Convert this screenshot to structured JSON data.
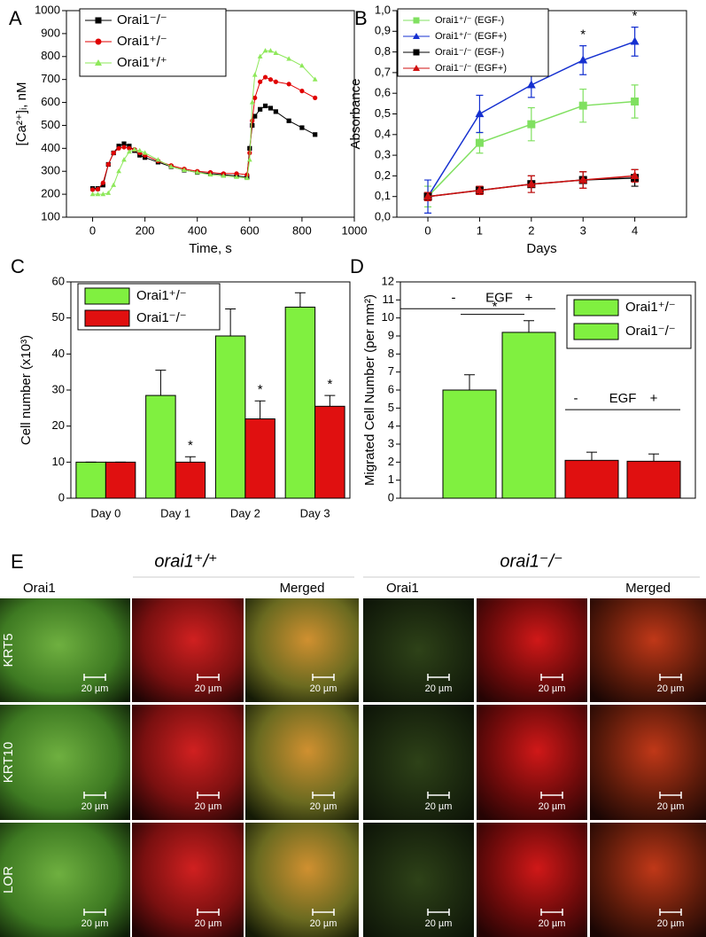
{
  "chart_data": [
    {
      "type": "line",
      "panel": "A",
      "xlabel": "Time, s",
      "ylabel": "[Ca²⁺]ᵢ, nM",
      "x": [
        0,
        20,
        40,
        60,
        80,
        100,
        120,
        140,
        160,
        180,
        200,
        250,
        300,
        350,
        400,
        450,
        500,
        550,
        590,
        600,
        610,
        620,
        640,
        660,
        680,
        700,
        750,
        800,
        850
      ],
      "series": [
        {
          "name": "Orai1⁻/⁻",
          "color": "#000000",
          "marker": "square",
          "values": [
            225,
            225,
            240,
            330,
            380,
            410,
            420,
            410,
            390,
            370,
            360,
            340,
            320,
            305,
            295,
            290,
            285,
            280,
            275,
            400,
            500,
            540,
            570,
            585,
            575,
            560,
            520,
            490,
            460
          ]
        },
        {
          "name": "Orai1⁺/⁻",
          "color": "#e00000",
          "marker": "circle",
          "values": [
            220,
            222,
            250,
            330,
            380,
            400,
            405,
            400,
            395,
            380,
            370,
            345,
            325,
            310,
            300,
            295,
            290,
            290,
            285,
            380,
            520,
            620,
            690,
            710,
            700,
            690,
            680,
            650,
            620
          ]
        },
        {
          "name": "Orai1⁺/⁺",
          "color": "#8ee85a",
          "marker": "triangle",
          "values": [
            200,
            200,
            200,
            205,
            240,
            300,
            350,
            385,
            395,
            390,
            380,
            350,
            320,
            305,
            295,
            285,
            280,
            275,
            270,
            350,
            600,
            720,
            800,
            825,
            825,
            815,
            790,
            760,
            700
          ]
        }
      ],
      "xlim": [
        -100,
        1000
      ],
      "xticks": [
        0,
        200,
        400,
        600,
        800,
        1000
      ],
      "ylim": [
        100,
        1000
      ],
      "yticks": [
        100,
        200,
        300,
        400,
        500,
        600,
        700,
        800,
        900,
        1000
      ]
    },
    {
      "type": "line",
      "panel": "B",
      "xlabel": "Days",
      "ylabel": "Absorbance",
      "x": [
        0,
        1,
        2,
        3,
        4
      ],
      "series": [
        {
          "name": "Orai1⁺/⁻ (EGF-)",
          "color": "#80e060",
          "marker": "square",
          "values": [
            0.1,
            0.36,
            0.45,
            0.54,
            0.56
          ],
          "errors": [
            0.05,
            0.05,
            0.08,
            0.08,
            0.08
          ]
        },
        {
          "name": "Orai1⁺/⁻ (EGF+)",
          "color": "#1530d0",
          "marker": "triangle",
          "values": [
            0.1,
            0.5,
            0.64,
            0.76,
            0.85
          ],
          "errors": [
            0.08,
            0.09,
            0.06,
            0.07,
            0.07
          ]
        },
        {
          "name": "Orai1⁻/⁻ (EGF-)",
          "color": "#000000",
          "marker": "square",
          "values": [
            0.1,
            0.13,
            0.16,
            0.18,
            0.19
          ],
          "errors": [
            0.02,
            0.02,
            0.04,
            0.04,
            0.04
          ]
        },
        {
          "name": "Orai1⁻/⁻ (EGF+)",
          "color": "#d01010",
          "marker": "triangle",
          "values": [
            0.1,
            0.13,
            0.16,
            0.18,
            0.2
          ],
          "errors": [
            0.02,
            0.02,
            0.04,
            0.04,
            0.03
          ]
        }
      ],
      "annotations": [
        {
          "text": "*",
          "x": 3
        },
        {
          "text": "*",
          "x": 4
        }
      ],
      "xlim": [
        -0.6,
        5
      ],
      "xticks": [
        0,
        1,
        2,
        3,
        4
      ],
      "ylim": [
        0,
        1
      ],
      "yticks": [
        {
          "value": 0,
          "label": "0,0"
        },
        {
          "value": 0.1,
          "label": "0,1"
        },
        {
          "value": 0.2,
          "label": "0,2"
        },
        {
          "value": 0.3,
          "label": "0,3"
        },
        {
          "value": 0.4,
          "label": "0,4"
        },
        {
          "value": 0.5,
          "label": "0,5"
        },
        {
          "value": 0.6,
          "label": "0,6"
        },
        {
          "value": 0.7,
          "label": "0,7"
        },
        {
          "value": 0.8,
          "label": "0,8"
        },
        {
          "value": 0.9,
          "label": "0,9"
        },
        {
          "value": 1,
          "label": "1,0"
        }
      ]
    },
    {
      "type": "bar",
      "panel": "C",
      "ylabel": "Cell number (x10³)",
      "categories": [
        "Day 0",
        "Day 1",
        "Day 2",
        "Day 3"
      ],
      "series": [
        {
          "name": "Orai1⁺/⁻",
          "color": "#80f040",
          "values": [
            10,
            28.5,
            45,
            53
          ],
          "errors": [
            0,
            7,
            7.5,
            4
          ]
        },
        {
          "name": "Orai1⁻/⁻",
          "color": "#e01010",
          "values": [
            10,
            10,
            22,
            25.5
          ],
          "errors": [
            0,
            1.5,
            5,
            3
          ]
        }
      ],
      "annotations": [
        {
          "text": "*",
          "x": 1
        },
        {
          "text": "*",
          "x": 2
        },
        {
          "text": "*",
          "x": 3
        }
      ],
      "ylim": [
        0,
        60
      ],
      "yticks": [
        0,
        10,
        20,
        30,
        40,
        50,
        60
      ]
    },
    {
      "type": "bar",
      "panel": "D",
      "ylabel": "Migrated Cell Number (per mm²)",
      "categories": [
        null,
        null,
        null,
        null
      ],
      "values": [
        6,
        9.2,
        2.1,
        2.05
      ],
      "errors": [
        0.85,
        0.65,
        0.45,
        0.4
      ],
      "colors": [
        "#80f040",
        "#80f040",
        "#e01010",
        "#e01010"
      ],
      "legend": [
        {
          "name": "Orai1⁺/⁻",
          "color": "#80f040"
        },
        {
          "name": "Orai1⁻/⁻",
          "color": "#80f040"
        }
      ],
      "groups": [
        {
          "minus": "-",
          "label": "EGF",
          "plus": "+"
        },
        {
          "minus": "-",
          "label": "EGF",
          "plus": "+"
        }
      ],
      "annotations": [
        {
          "text": "*"
        }
      ],
      "ylim": [
        0,
        12
      ],
      "yticks": [
        0,
        1,
        2,
        3,
        4,
        5,
        6,
        7,
        8,
        9,
        10,
        11,
        12
      ]
    }
  ],
  "panel_e": {
    "panel": "E",
    "scale_bar": "20 µm",
    "groups": [
      {
        "title": "orai1⁺/⁺",
        "column_labels": [
          "Orai1",
          "Merged"
        ]
      },
      {
        "title": "orai1⁻/⁻",
        "column_labels": [
          "Orai1",
          "Merged"
        ]
      }
    ],
    "rows": [
      "KRT5",
      "KRT10",
      "LOR"
    ]
  }
}
